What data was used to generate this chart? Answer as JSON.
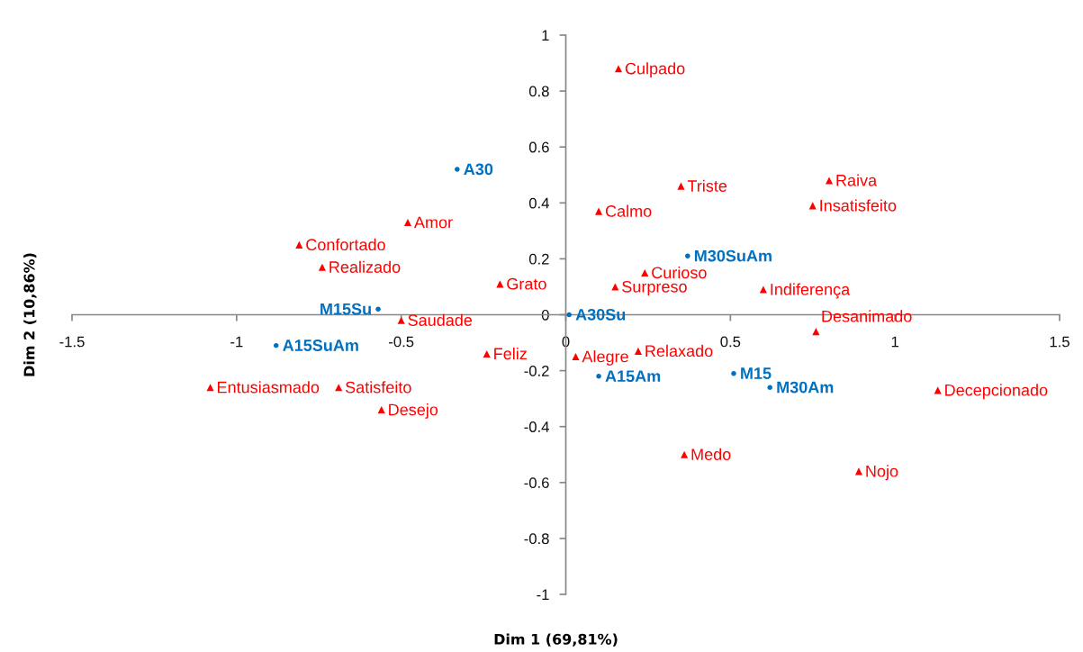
{
  "chart_data": {
    "type": "scatter",
    "xlabel": "Dim 1 (69,81%)",
    "ylabel": "Dim 2 (10,86%)",
    "xlim": [
      -1.5,
      1.5
    ],
    "ylim": [
      -1,
      1
    ],
    "xticks": [
      -1.5,
      -1,
      -0.5,
      0,
      0.5,
      1,
      1.5
    ],
    "yticks": [
      -1,
      -0.8,
      -0.6,
      -0.4,
      -0.2,
      0,
      0.2,
      0.4,
      0.6,
      0.8,
      1
    ],
    "grid": false,
    "series": [
      {
        "color": "#0070c0",
        "marker": "circle",
        "x": [
          -0.33,
          -0.57,
          -0.88,
          0.01,
          0.1,
          0.37,
          0.51,
          0.62
        ],
        "values": [
          0.52,
          0.02,
          -0.11,
          0.0,
          -0.22,
          0.21,
          -0.21,
          -0.26
        ],
        "value_labels": [
          "A30",
          "M15Su",
          "A15SuAm",
          "A30Su",
          "A15Am",
          "M30SuAm",
          "M15",
          "M30Am"
        ]
      },
      {
        "color": "#ff0000",
        "marker": "triangle",
        "x": [
          0.16,
          0.35,
          0.8,
          0.75,
          0.1,
          -0.48,
          -0.81,
          -0.74,
          -0.2,
          0.24,
          0.15,
          0.6,
          -0.5,
          0.76,
          -0.24,
          0.03,
          0.22,
          -1.08,
          -0.69,
          -0.56,
          1.13,
          0.36,
          0.89
        ],
        "values": [
          0.88,
          0.46,
          0.48,
          0.39,
          0.37,
          0.33,
          0.25,
          0.17,
          0.11,
          0.15,
          0.1,
          0.09,
          -0.02,
          -0.06,
          -0.14,
          -0.15,
          -0.13,
          -0.26,
          -0.26,
          -0.34,
          -0.27,
          -0.5,
          -0.56
        ],
        "value_labels": [
          "Culpado",
          "Triste",
          "Raiva",
          "Insatisfeito",
          "Calmo",
          "Amor",
          "Confortado",
          "Realizado",
          "Grato",
          "Curioso",
          "Surpreso",
          "Indiferença",
          "Saudade",
          "Desanimado",
          "Feliz",
          "Alegre",
          "Relaxado",
          "Entusiasmado",
          "Satisfeito",
          "Desejo",
          "Decepcionado",
          "Medo",
          "Nojo"
        ]
      }
    ]
  }
}
